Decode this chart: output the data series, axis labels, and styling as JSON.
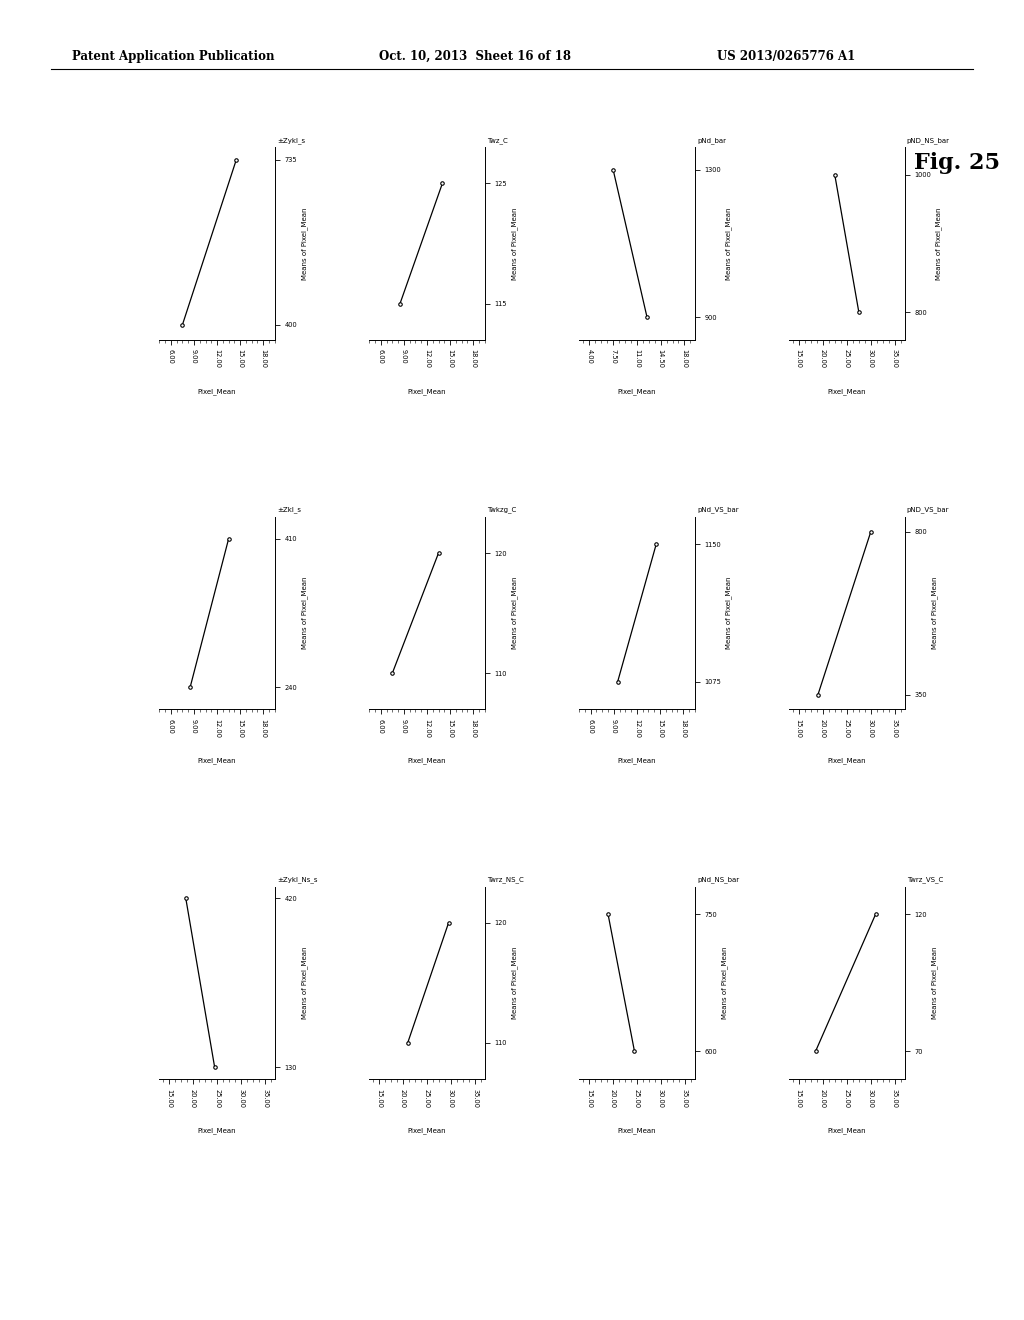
{
  "header_left": "Patent Application Publication",
  "header_mid": "Oct. 10, 2013  Sheet 16 of 18",
  "header_right": "US 2013/0265776 A1",
  "fig_label": "Fig. 25",
  "background": "#ffffff",
  "plots": [
    {
      "row": 0,
      "col": 0,
      "xvar": "±Zykl_s",
      "xrange_lo": "400",
      "xrange_hi": "735",
      "ylabel_axis": "Means of Pixel_Mean",
      "yticks": [
        6.0,
        9.0,
        12.0,
        15.0,
        18.0
      ],
      "xtick_vals": [
        400,
        735
      ],
      "x_data": [
        400,
        735
      ],
      "y_data": [
        7.5,
        14.5
      ],
      "xlim": [
        370,
        760
      ],
      "ylim": [
        4.5,
        19.5
      ]
    },
    {
      "row": 0,
      "col": 1,
      "xvar": "Twz_C",
      "xrange_lo": "115",
      "xrange_hi": "125",
      "ylabel_axis": "Means of Pixel_Mean",
      "yticks": [
        6.0,
        9.0,
        12.0,
        15.0,
        18.0
      ],
      "xtick_vals": [
        115,
        125
      ],
      "x_data": [
        115,
        125
      ],
      "y_data": [
        8.5,
        14.0
      ],
      "xlim": [
        112,
        128
      ],
      "ylim": [
        4.5,
        19.5
      ]
    },
    {
      "row": 0,
      "col": 2,
      "xvar": "pNd_bar",
      "xrange_lo": "900",
      "xrange_hi": "1300",
      "ylabel_axis": "Means of Pixel_Mean",
      "yticks": [
        4.0,
        7.5,
        11.0,
        14.5,
        18.0
      ],
      "xtick_vals": [
        900,
        1300
      ],
      "x_data": [
        900,
        1300
      ],
      "y_data": [
        12.5,
        7.5
      ],
      "xlim": [
        840,
        1360
      ],
      "ylim": [
        2.5,
        19.5
      ]
    },
    {
      "row": 0,
      "col": 3,
      "xvar": "pND_NS_bar",
      "xrange_lo": "800",
      "xrange_hi": "1000",
      "ylabel_axis": "Means of Pixel_Mean",
      "yticks": [
        15.0,
        20.0,
        25.0,
        30.0,
        35.0
      ],
      "xtick_vals": [
        800,
        1000
      ],
      "x_data": [
        800,
        1000
      ],
      "y_data": [
        27.5,
        22.5
      ],
      "xlim": [
        760,
        1040
      ],
      "ylim": [
        13.0,
        37.0
      ]
    },
    {
      "row": 1,
      "col": 0,
      "xvar": "±Zkl_s",
      "xrange_lo": "240",
      "xrange_hi": "410",
      "ylabel_axis": "Means of Pixel_Mean",
      "yticks": [
        6.0,
        9.0,
        12.0,
        15.0,
        18.0
      ],
      "xtick_vals": [
        240,
        410
      ],
      "x_data": [
        240,
        410
      ],
      "y_data": [
        8.5,
        13.5
      ],
      "xlim": [
        215,
        435
      ],
      "ylim": [
        4.5,
        19.5
      ]
    },
    {
      "row": 1,
      "col": 1,
      "xvar": "Twkzg_C",
      "xrange_lo": "110",
      "xrange_hi": "120",
      "ylabel_axis": "Means of Pixel_Mean",
      "yticks": [
        6.0,
        9.0,
        12.0,
        15.0,
        18.0
      ],
      "xtick_vals": [
        110,
        120
      ],
      "x_data": [
        110,
        120
      ],
      "y_data": [
        7.5,
        13.5
      ],
      "xlim": [
        107,
        123
      ],
      "ylim": [
        4.5,
        19.5
      ]
    },
    {
      "row": 1,
      "col": 2,
      "xvar": "pNd_VS_bar",
      "xrange_lo": "1075",
      "xrange_hi": "1150",
      "ylabel_axis": "Means of Pixel_Mean",
      "yticks": [
        6.0,
        9.0,
        12.0,
        15.0,
        18.0
      ],
      "xtick_vals": [
        1075,
        1150
      ],
      "x_data": [
        1075,
        1150
      ],
      "y_data": [
        9.5,
        14.5
      ],
      "xlim": [
        1060,
        1165
      ],
      "ylim": [
        4.5,
        19.5
      ]
    },
    {
      "row": 1,
      "col": 3,
      "xvar": "pND_VS_bar",
      "xrange_lo": "350",
      "xrange_hi": "800",
      "ylabel_axis": "Means of Pixel_Mean",
      "yticks": [
        15.0,
        20.0,
        25.0,
        30.0,
        35.0
      ],
      "xtick_vals": [
        350,
        800
      ],
      "x_data": [
        350,
        800
      ],
      "y_data": [
        19.0,
        30.0
      ],
      "xlim": [
        310,
        840
      ],
      "ylim": [
        13.0,
        37.0
      ]
    },
    {
      "row": 2,
      "col": 0,
      "xvar": "±Zykl_Ns_s",
      "xrange_lo": "130",
      "xrange_hi": "420",
      "ylabel_axis": "Means of Pixel_Mean",
      "yticks": [
        15.0,
        20.0,
        25.0,
        30.0,
        35.0
      ],
      "xtick_vals": [
        130,
        420
      ],
      "x_data": [
        130,
        420
      ],
      "y_data": [
        24.5,
        18.5
      ],
      "xlim": [
        110,
        440
      ],
      "ylim": [
        13.0,
        37.0
      ]
    },
    {
      "row": 2,
      "col": 1,
      "xvar": "Twrz_NS_C",
      "xrange_lo": "110",
      "xrange_hi": "120",
      "ylabel_axis": "Means of Pixel_Mean",
      "yticks": [
        15.0,
        20.0,
        25.0,
        30.0,
        35.0
      ],
      "xtick_vals": [
        110,
        120
      ],
      "x_data": [
        110,
        120
      ],
      "y_data": [
        21.0,
        29.5
      ],
      "xlim": [
        107,
        123
      ],
      "ylim": [
        13.0,
        37.0
      ]
    },
    {
      "row": 2,
      "col": 2,
      "xvar": "pNd_NS_bar",
      "xrange_lo": "600",
      "xrange_hi": "750",
      "ylabel_axis": "Means of Pixel_Mean",
      "yticks": [
        15.0,
        20.0,
        25.0,
        30.0,
        35.0
      ],
      "xtick_vals": [
        600,
        750
      ],
      "x_data": [
        600,
        750
      ],
      "y_data": [
        24.5,
        19.0
      ],
      "xlim": [
        570,
        780
      ],
      "ylim": [
        13.0,
        37.0
      ]
    },
    {
      "row": 2,
      "col": 3,
      "xvar": "Twrz_VS_C",
      "xrange_lo": "70",
      "xrange_hi": "120",
      "ylabel_axis": "Means of Pixel_Mean",
      "yticks": [
        15.0,
        20.0,
        25.0,
        30.0,
        35.0
      ],
      "xtick_vals": [
        70,
        120
      ],
      "x_data": [
        70,
        120
      ],
      "y_data": [
        18.5,
        31.0
      ],
      "xlim": [
        60,
        130
      ],
      "ylim": [
        13.0,
        37.0
      ]
    }
  ]
}
